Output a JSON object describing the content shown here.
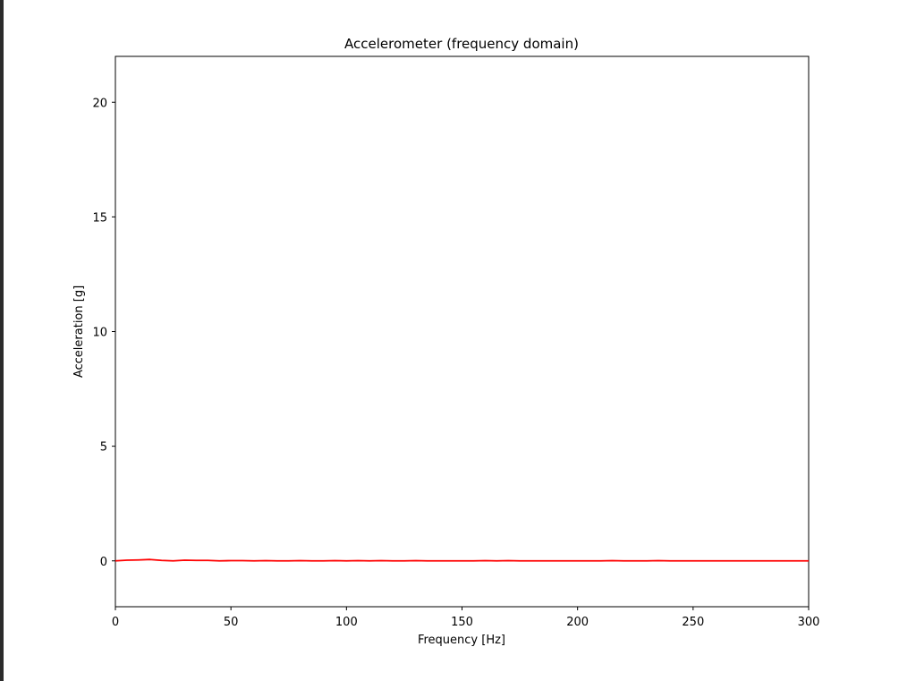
{
  "chart_data": {
    "type": "line",
    "title": "Accelerometer (frequency domain)",
    "xlabel": "Frequency [Hz]",
    "ylabel": "Acceleration [g]",
    "xlim": [
      0,
      300
    ],
    "ylim": [
      -2,
      22
    ],
    "xticks": [
      0,
      50,
      100,
      150,
      200,
      250,
      300
    ],
    "yticks": [
      0,
      5,
      10,
      15,
      20
    ],
    "grid": false,
    "series": [
      {
        "color": "#ff0000",
        "x": [
          0,
          5,
          10,
          15,
          20,
          25,
          30,
          35,
          40,
          45,
          50,
          55,
          60,
          65,
          70,
          75,
          80,
          85,
          90,
          95,
          100,
          105,
          110,
          115,
          120,
          125,
          130,
          135,
          140,
          145,
          150,
          155,
          160,
          165,
          170,
          175,
          180,
          185,
          190,
          195,
          200,
          205,
          210,
          215,
          220,
          225,
          230,
          235,
          240,
          245,
          250,
          255,
          260,
          265,
          270,
          275,
          280,
          285,
          290,
          295,
          300
        ],
        "values": [
          0.0,
          0.03,
          0.04,
          0.06,
          0.02,
          0.0,
          0.03,
          0.02,
          0.02,
          0.0,
          0.01,
          0.01,
          0.0,
          0.01,
          0.0,
          0.0,
          0.01,
          0.0,
          0.0,
          0.01,
          0.0,
          0.01,
          0.0,
          0.01,
          0.0,
          0.0,
          0.01,
          0.0,
          0.0,
          0.0,
          0.0,
          0.0,
          0.01,
          0.0,
          0.01,
          0.0,
          0.0,
          0.0,
          0.0,
          0.0,
          0.0,
          0.0,
          0.0,
          0.01,
          0.0,
          0.0,
          0.0,
          0.01,
          0.0,
          0.0,
          0.0,
          0.0,
          0.0,
          0.0,
          0.0,
          0.0,
          0.0,
          0.0,
          0.0,
          0.0,
          0.0
        ]
      }
    ]
  }
}
